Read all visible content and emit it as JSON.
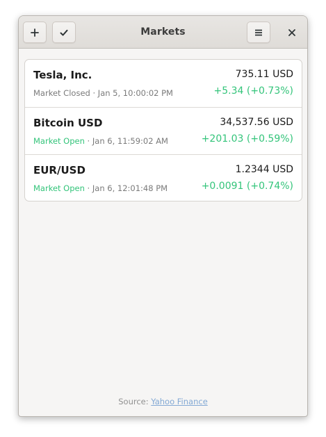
{
  "window": {
    "title": "Markets"
  },
  "toolbar": {
    "add_icon": "plus-icon",
    "select_icon": "checkmark-icon",
    "menu_icon": "hamburger-menu-icon",
    "close_icon": "close-icon"
  },
  "symbols": [
    {
      "name": "Tesla, Inc.",
      "state": "Market Closed",
      "separator": " · ",
      "time": "Jan  5, 10:00:02 PM",
      "price": "735.11",
      "currency": "USD",
      "change": "+5.34 (+0.73%)"
    },
    {
      "name": "Bitcoin USD",
      "state": "Market Open",
      "separator": " · ",
      "time": "Jan  6, 11:59:02 AM",
      "price": "34,537.56",
      "currency": "USD",
      "change": "+201.03 (+0.59%)"
    },
    {
      "name": "EUR/USD",
      "state": "Market Open",
      "separator": " · ",
      "time": "Jan  6, 12:01:48 PM",
      "price": "1.2344",
      "currency": "USD",
      "change": "+0.0091 (+0.74%)"
    }
  ],
  "footer": {
    "prefix": "Source: ",
    "link": "Yahoo Finance"
  },
  "colors": {
    "positive": "#33c47a",
    "link": "#82a8d4",
    "muted": "#7a7a7a"
  }
}
